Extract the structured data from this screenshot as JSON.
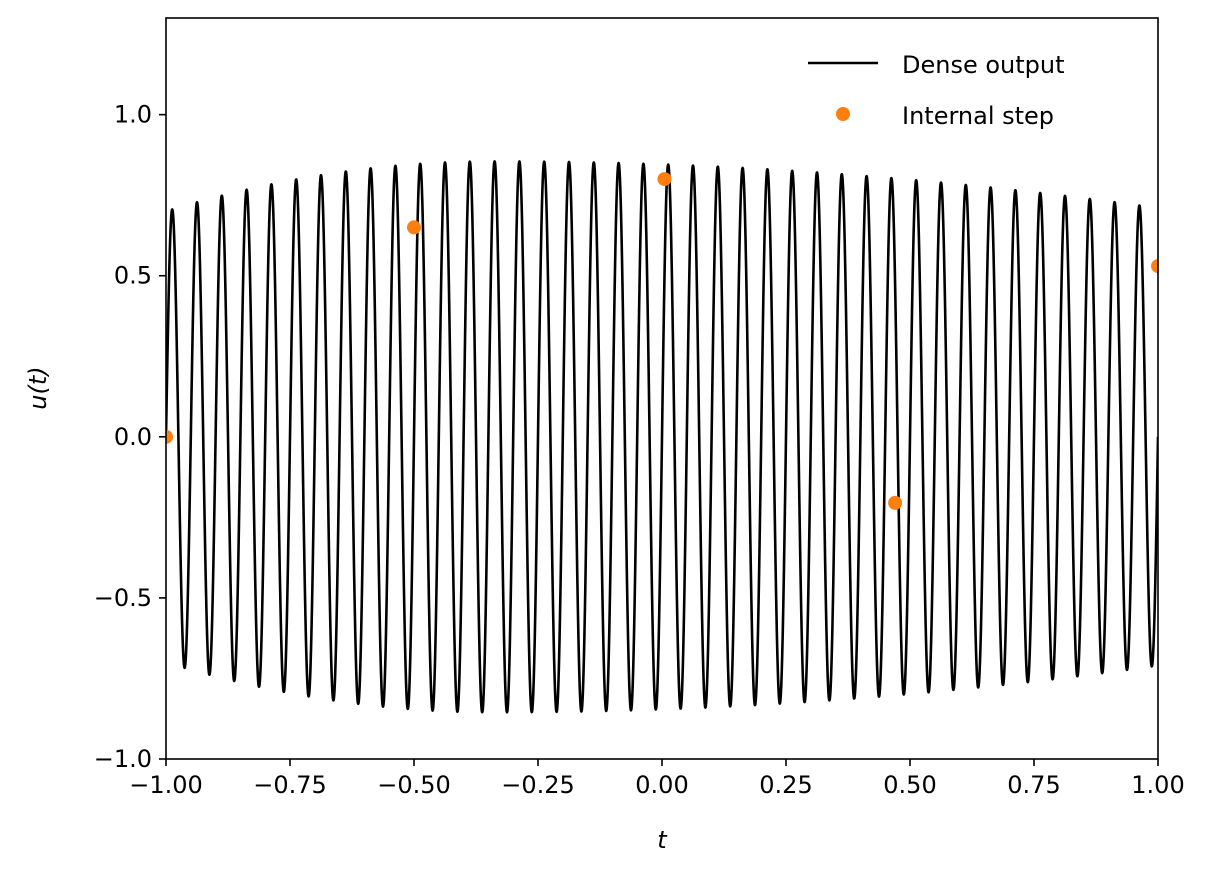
{
  "chart_data": {
    "type": "line",
    "title": "",
    "xlabel": "t",
    "ylabel": "u(t)",
    "xlim": [
      -1.0,
      1.0
    ],
    "ylim": [
      -1.0,
      1.3
    ],
    "xticks": [
      -1.0,
      -0.75,
      -0.5,
      -0.25,
      0.0,
      0.25,
      0.5,
      0.75,
      1.0
    ],
    "xtick_labels": [
      "−1.00",
      "−0.75",
      "−0.50",
      "−0.25",
      "0.00",
      "0.25",
      "0.50",
      "0.75",
      "1.00"
    ],
    "yticks": [
      -1.0,
      -0.5,
      0.0,
      0.5,
      1.0
    ],
    "ytick_labels": [
      "−1.0",
      "−0.5",
      "0.0",
      "0.5",
      "1.0"
    ],
    "grid": false,
    "legend_position": "top-right",
    "series": [
      {
        "name": "Dense output",
        "kind": "line",
        "color": "#000000",
        "model": {
          "expression": "A(t) * sin(2*pi*f*(t + 1))",
          "frequency": 20.0,
          "amplitude_start": 0.7,
          "amplitude_peak": 0.855,
          "amplitude_peak_at": -0.34,
          "amplitude_end": 0.71
        }
      },
      {
        "name": "Internal step",
        "kind": "markers",
        "color": "#ff7f0e",
        "x": [
          -1.0,
          -0.5,
          0.005,
          0.47,
          1.0
        ],
        "y": [
          0.0,
          0.65,
          0.8,
          -0.205,
          0.53
        ]
      }
    ]
  }
}
